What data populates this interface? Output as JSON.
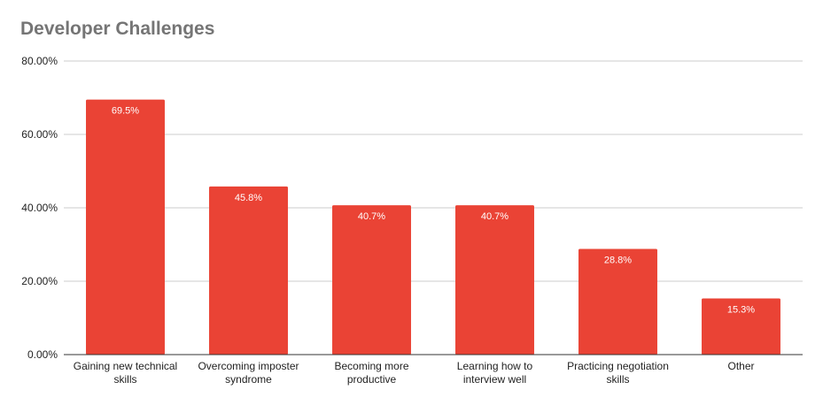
{
  "chart_data": {
    "type": "bar",
    "title": "Developer Challenges",
    "categories": [
      [
        "Gaining new technical",
        "skills"
      ],
      [
        "Overcoming imposter",
        "syndrome"
      ],
      [
        "Becoming more",
        "productive"
      ],
      [
        "Learning how to",
        "interview well"
      ],
      [
        "Practicing negotiation",
        "skills"
      ],
      [
        "Other"
      ]
    ],
    "values": [
      69.5,
      45.8,
      40.7,
      40.7,
      28.8,
      15.3
    ],
    "data_labels": [
      "69.5%",
      "45.8%",
      "40.7%",
      "40.7%",
      "28.8%",
      "15.3%"
    ],
    "ylim": [
      0,
      80
    ],
    "yticks": [
      0,
      20,
      40,
      60,
      80
    ],
    "ytick_labels": [
      "0.00%",
      "20.00%",
      "40.00%",
      "60.00%",
      "80.00%"
    ],
    "xlabel": "",
    "ylabel": "",
    "grid": true,
    "legend": "none",
    "bar_color": "#ea4335",
    "grid_color": "#cccccc",
    "title_color": "#757575"
  }
}
